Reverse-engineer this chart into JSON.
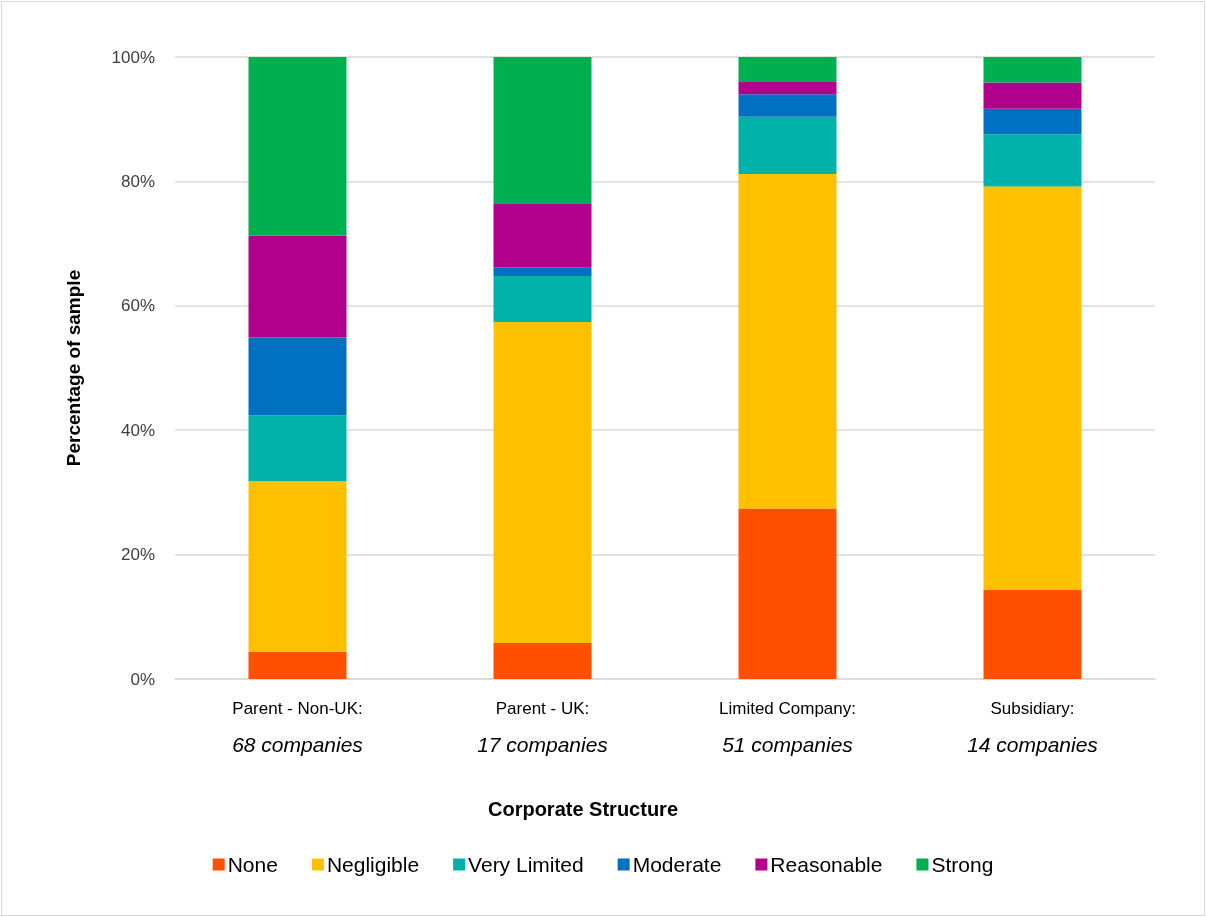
{
  "chart_data": {
    "type": "bar",
    "stacked": true,
    "ylabel": "Percentage of sample",
    "xlabel": "Corporate Structure",
    "categories": [
      "Parent - Non-UK:\n68 companies",
      "Parent - UK:\n17 companies",
      "Limited Company:\n51 companies",
      "Subsidiary:\n14 companies"
    ],
    "series": [
      {
        "name": "None",
        "color": "#ff4f00",
        "values": [
          4.4,
          5.8,
          27.4,
          14.3
        ]
      },
      {
        "name": "Negligible",
        "color": "#ffc000",
        "values": [
          27.4,
          51.6,
          53.8,
          64.9
        ]
      },
      {
        "name": "Very Limited",
        "color": "#00b2aa",
        "values": [
          10.6,
          7.4,
          9.2,
          8.4
        ]
      },
      {
        "name": "Moderate",
        "color": "#0070c0",
        "values": [
          12.5,
          1.4,
          3.6,
          4.1
        ]
      },
      {
        "name": "Reasonable",
        "color": "#b0008c",
        "values": [
          16.4,
          10.3,
          2.1,
          4.2
        ]
      },
      {
        "name": "Strong",
        "color": "#00b050",
        "values": [
          28.7,
          23.5,
          3.9,
          4.1
        ]
      }
    ],
    "ylim": [
      0,
      100
    ],
    "yticks": [
      {
        "value": 0,
        "label": "0%"
      },
      {
        "value": 20,
        "label": "20%"
      },
      {
        "value": 40,
        "label": "40%"
      },
      {
        "value": 60,
        "label": "60%"
      },
      {
        "value": 80,
        "label": "80%"
      },
      {
        "value": 100,
        "label": "100%"
      }
    ],
    "grid": "y",
    "legend": "bottom"
  }
}
